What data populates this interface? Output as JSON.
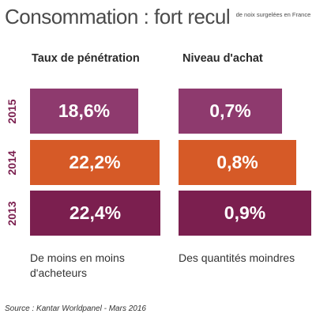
{
  "title": "Consommation : fort recul",
  "subtitle": "de noix surgelées en France",
  "source": "Source : Kantar Worldpanel - Mars 2016",
  "colors": {
    "2015": "#8e3a6e",
    "2014": "#d65a27",
    "2013": "#7b1f4f"
  },
  "chart_data": [
    {
      "type": "bar",
      "title": "Taux de pénétration",
      "categories": [
        "2015",
        "2014",
        "2013"
      ],
      "values": [
        18.6,
        22.2,
        22.4
      ],
      "labels": [
        "18,6%",
        "22,2%",
        "22,4%"
      ],
      "unit": "%",
      "caption": "De moins en moins d'acheteurs"
    },
    {
      "type": "bar",
      "title": "Niveau d'achat",
      "categories": [
        "2015",
        "2014",
        "2013"
      ],
      "values": [
        0.7,
        0.8,
        0.9
      ],
      "labels": [
        "0,7%",
        "0,8%",
        "0,9%"
      ],
      "unit": "%",
      "caption": "Des quantités moindres"
    }
  ]
}
